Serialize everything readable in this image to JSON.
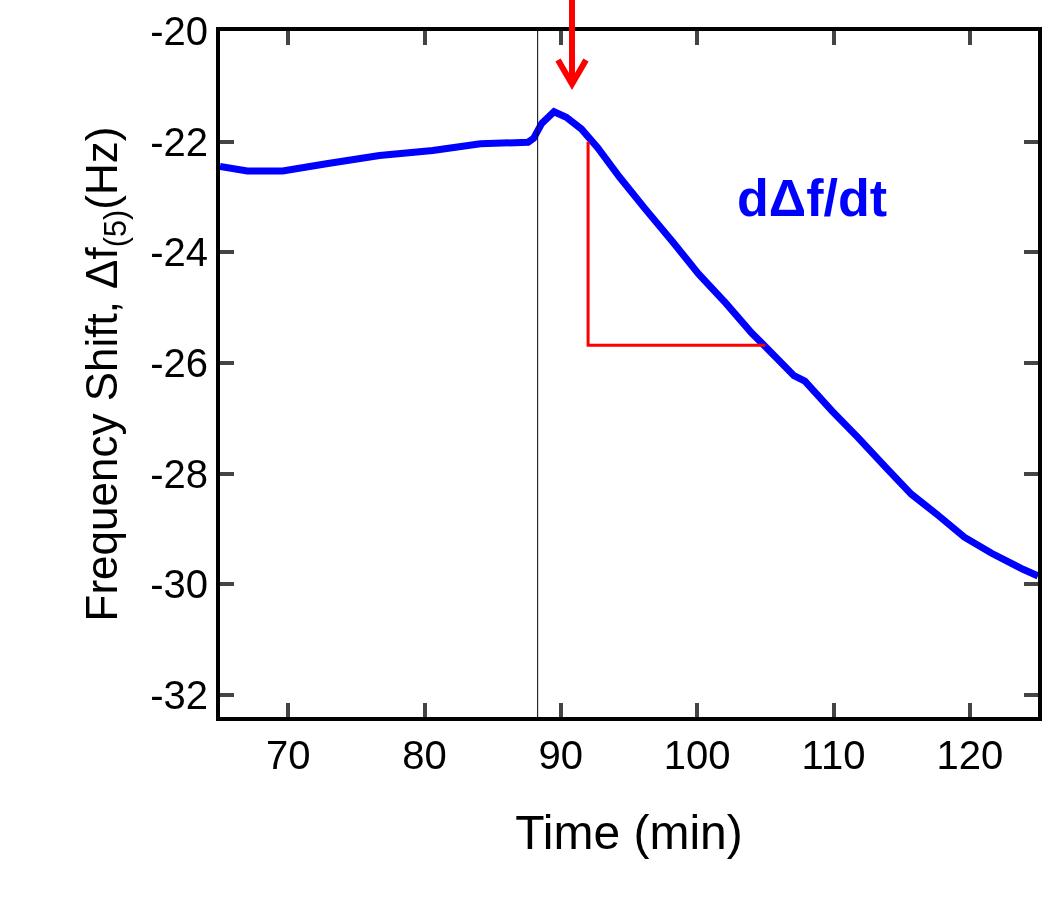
{
  "chart_data": {
    "type": "line",
    "xlabel": "Time (min)",
    "ylabel": "Frequency Shift, Δf$_{(5)}$(Hz)",
    "xlim": [
      65,
      125
    ],
    "xticks": [
      70,
      80,
      90,
      100,
      110,
      120
    ],
    "ylim": [
      -32.4,
      -20
    ],
    "yticks": [
      -20,
      -22,
      -24,
      -26,
      -28,
      -30,
      -32
    ],
    "grid": false,
    "marker": "none",
    "line_style": "solid",
    "series": [
      {
        "color": "#0000ff",
        "x": [
          65.0,
          67.0,
          69.6,
          72.8,
          76.7,
          80.6,
          84.1,
          87.6,
          88.0,
          88.6,
          89.5,
          90.4,
          91.5,
          92.7,
          94.3,
          96.2,
          98.2,
          100.1,
          102.1,
          104.0,
          104.9,
          107.1,
          107.9,
          109.9,
          111.8,
          113.8,
          115.7,
          117.7,
          119.6,
          121.6,
          123.9,
          125.0
        ],
        "values": [
          -22.45,
          -22.53,
          -22.53,
          -22.4,
          -22.25,
          -22.16,
          -22.04,
          -22.01,
          -21.94,
          -21.67,
          -21.46,
          -21.56,
          -21.77,
          -22.11,
          -22.64,
          -23.22,
          -23.81,
          -24.39,
          -24.92,
          -25.46,
          -25.68,
          -26.23,
          -26.33,
          -26.87,
          -27.35,
          -27.88,
          -28.37,
          -28.76,
          -29.15,
          -29.44,
          -29.73,
          -29.85
        ]
      },
      {
        "color": "#ff0000",
        "x": [
          92.0,
          92.0,
          105.0
        ],
        "values": [
          -22.0,
          -25.68,
          -25.68
        ]
      }
    ],
    "ref_lines": [
      {
        "axis": "x",
        "value": 88.3,
        "color": "#000000"
      }
    ],
    "annotations": [
      "dΔf/dt"
    ]
  }
}
